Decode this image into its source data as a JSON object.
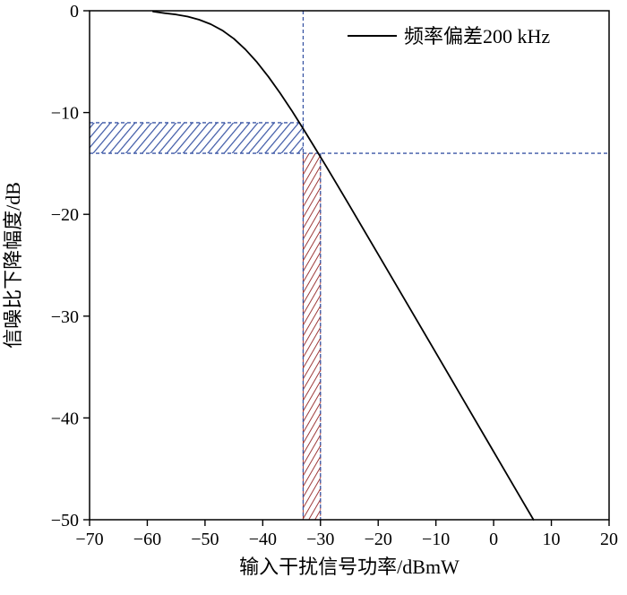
{
  "chart_data": {
    "type": "line",
    "title": "",
    "xlabel": "输入干扰信号功率/dBmW",
    "ylabel": "信噪比下降幅度/dB",
    "xlim": [
      -70,
      20
    ],
    "ylim": [
      -50,
      0
    ],
    "x_ticks": [
      -70,
      -60,
      -50,
      -40,
      -30,
      -20,
      -10,
      0,
      10,
      20
    ],
    "y_ticks": [
      0,
      -10,
      -20,
      -30,
      -40,
      -50
    ],
    "grid": false,
    "legend_position": "top-right-inside",
    "legend": {
      "label": "频率偏差200 kHz",
      "line_color": "#000000"
    },
    "series": [
      {
        "name": "频率偏差200 kHz",
        "color": "#000000",
        "points": [
          [
            -59,
            -0.08
          ],
          [
            -57,
            -0.24
          ],
          [
            -55,
            -0.37
          ],
          [
            -53,
            -0.57
          ],
          [
            -51,
            -0.88
          ],
          [
            -49,
            -1.32
          ],
          [
            -47,
            -1.93
          ],
          [
            -45,
            -2.75
          ],
          [
            -43,
            -3.8
          ],
          [
            -41,
            -5.05
          ],
          [
            -39,
            -6.5
          ],
          [
            -37,
            -8.09
          ],
          [
            -35,
            -9.79
          ],
          [
            -33,
            -11.58
          ],
          [
            -31,
            -13.42
          ],
          [
            -29,
            -15.29
          ],
          [
            -27,
            -17.19
          ],
          [
            -25,
            -19.11
          ],
          [
            -20,
            -23.93
          ],
          [
            -15,
            -28.76
          ],
          [
            -10,
            -33.61
          ],
          [
            -5,
            -38.46
          ],
          [
            0,
            -43.31
          ],
          [
            5,
            -48.16
          ],
          [
            6.9,
            -50
          ]
        ]
      }
    ],
    "annotations": {
      "guide_color": "#3a56a5",
      "vline_full": {
        "x": -33,
        "y0": 0,
        "y1": -50
      },
      "vline_partial": {
        "x": -30,
        "y0": -14,
        "y1": -50
      },
      "hline_partial": {
        "y": -11,
        "x0": -70,
        "x1": -33
      },
      "hline_full": {
        "y": -14,
        "x0": -70,
        "x1": 20
      },
      "blue_hatch_band": {
        "x0": -70,
        "x1": -33,
        "y0": -14,
        "y1": -11,
        "color": "#3a56a5"
      },
      "red_hatch_band": {
        "x0": -33,
        "x1": -30,
        "y0": -50,
        "y1": -14,
        "color": "#9e3a3a"
      }
    }
  }
}
